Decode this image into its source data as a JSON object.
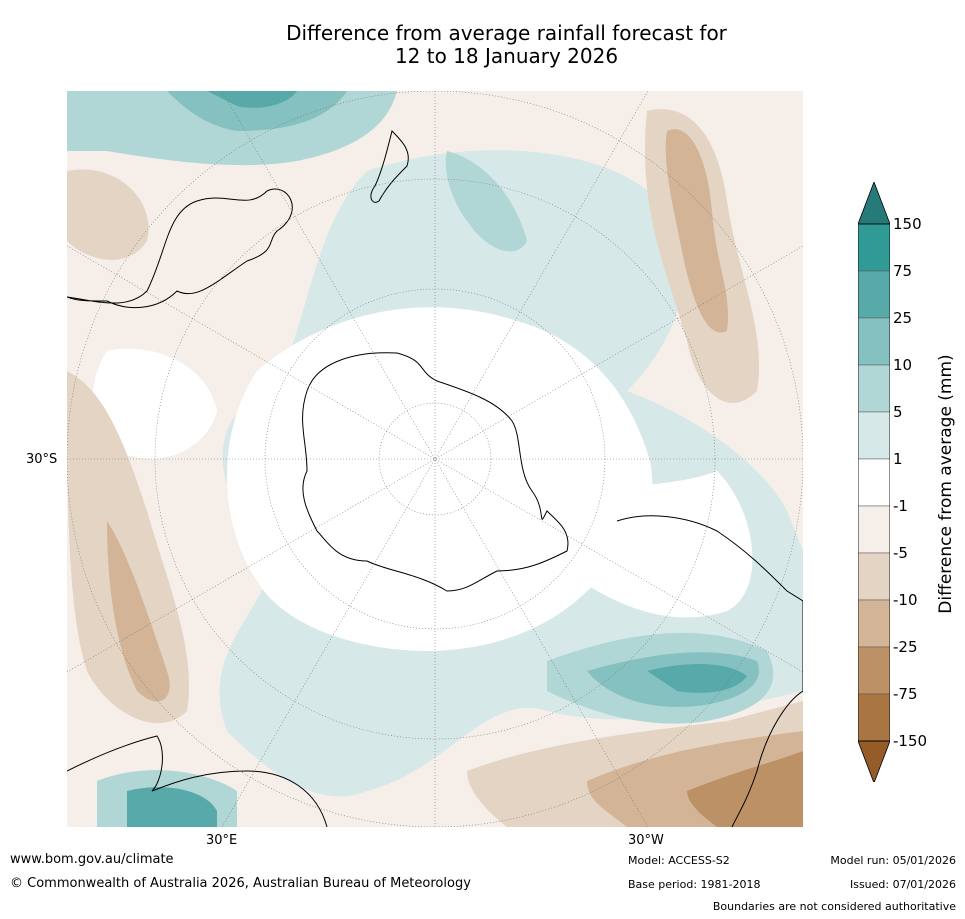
{
  "title": {
    "line1": "Difference from average rainfall forecast for",
    "line2": "12 to 18 January 2026"
  },
  "map": {
    "projection_center": "South Pole",
    "lat_labels": [
      "30°S"
    ],
    "lon_labels": [
      "30°E",
      "30°W"
    ]
  },
  "colorbar": {
    "title": "Difference from average (mm)",
    "ticks": [
      "150",
      "75",
      "25",
      "10",
      "5",
      "1",
      "-1",
      "-5",
      "-10",
      "-25",
      "-75",
      "-150"
    ],
    "colors": [
      "#267a78",
      "#2f9a96",
      "#57aaa9",
      "#84c1c0",
      "#b0d7d6",
      "#d6e9e8",
      "#ffffff",
      "#f5eee9",
      "#e4d4c4",
      "#d3b496",
      "#bd9166",
      "#a87543",
      "#955c28"
    ]
  },
  "footer": {
    "website": "www.bom.gov.au/climate",
    "copyright": "© Commonwealth of Australia 2026, Australian Bureau of Meteorology",
    "model": "Model: ACCESS-S2",
    "base_period": "Base period: 1981-2018",
    "model_run": "Model run: 05/01/2026",
    "issued": "Issued: 07/01/2026",
    "disclaimer": "Boundaries are not considered authoritative"
  }
}
